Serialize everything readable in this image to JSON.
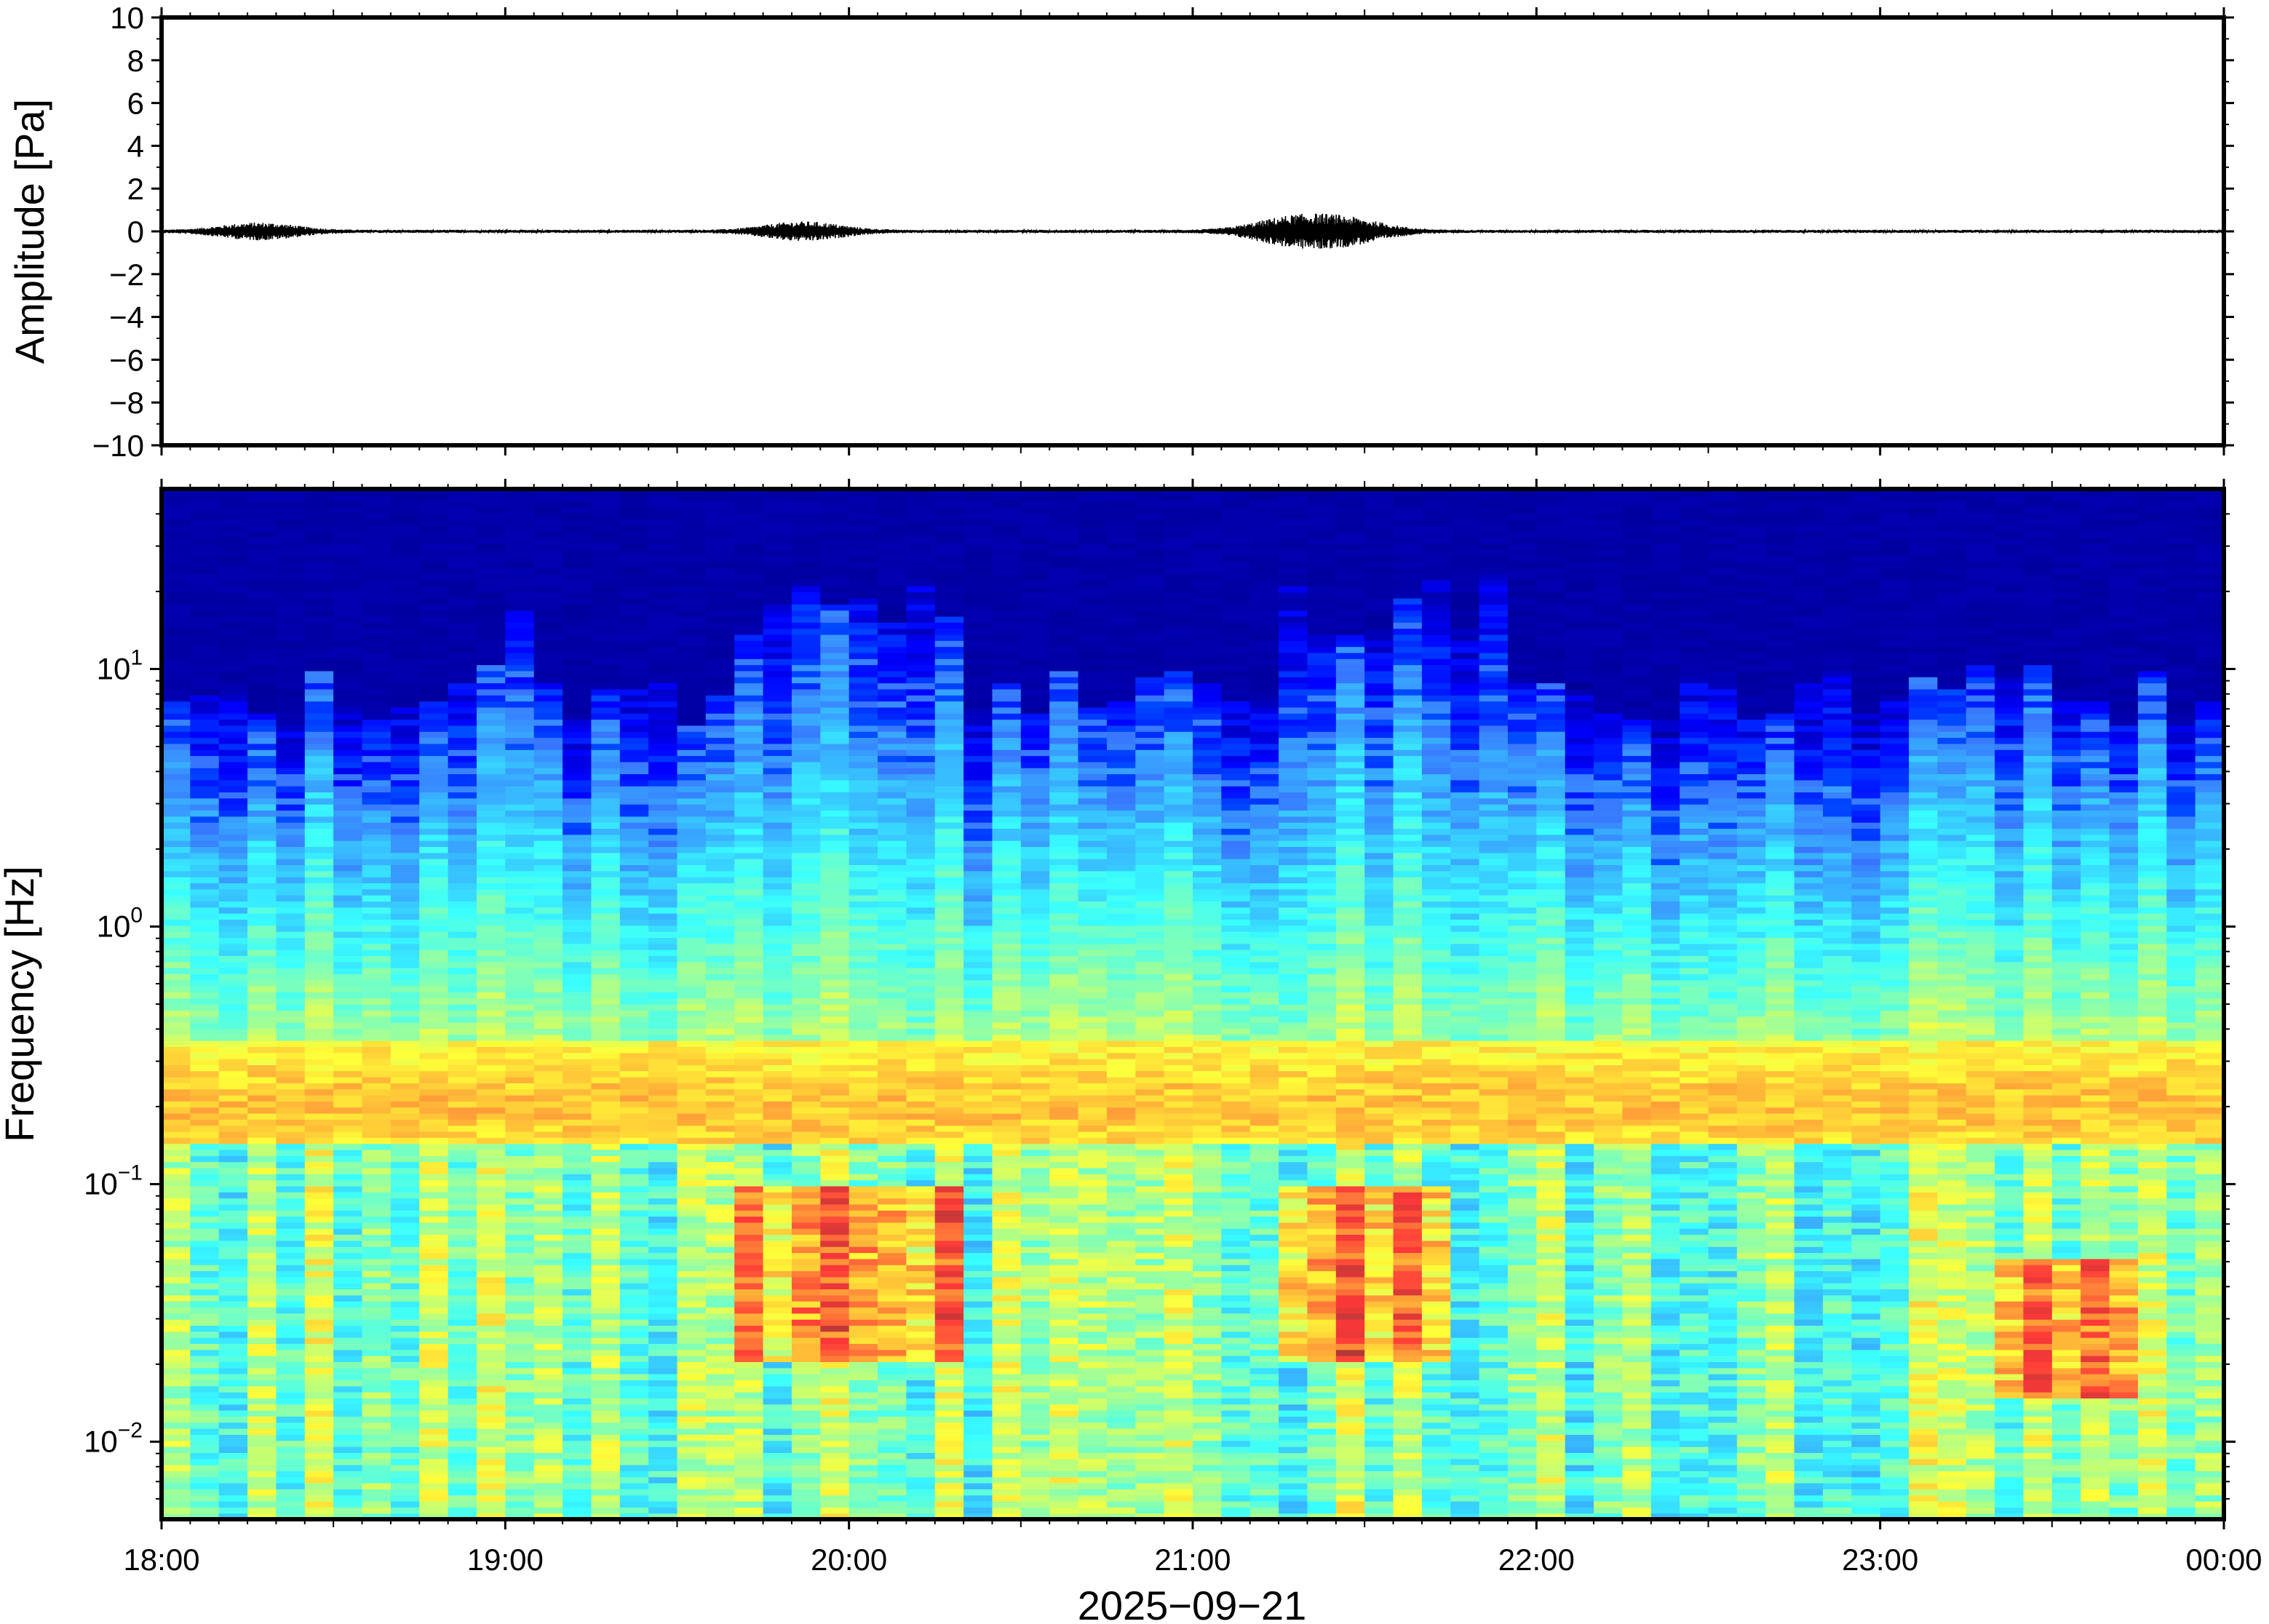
{
  "chart_data": [
    {
      "type": "line",
      "panel": "waveform",
      "ylabel": "Amplitude [Pa]",
      "xlabel": "",
      "ylim": [
        -10,
        10
      ],
      "yticks": [
        10,
        8,
        6,
        4,
        2,
        0,
        -2,
        -4,
        -6,
        -8,
        -10
      ],
      "ytick_labels": [
        "10",
        "8",
        "6",
        "4",
        "2",
        "0",
        "−2",
        "−4",
        "−6",
        "−8",
        "−10"
      ],
      "xlim": [
        "18:00",
        "00:00"
      ],
      "line_color": "#000000",
      "baseline": 0,
      "bursts": [
        {
          "time": "18:17",
          "amplitude": 0.35
        },
        {
          "time": "19:52",
          "amplitude": 0.4
        },
        {
          "time": "21:17",
          "amplitude": 0.55
        },
        {
          "time": "21:27",
          "amplitude": 0.5
        }
      ]
    },
    {
      "type": "heatmap",
      "panel": "spectrogram",
      "ylabel": "Frequency [Hz]",
      "xlabel": "2025−09−21",
      "y_scale": "log",
      "ylim": [
        0.005,
        50
      ],
      "yticks": [
        10,
        1,
        0.1,
        0.01
      ],
      "ytick_labels": [
        {
          "base": "10",
          "exp": "1"
        },
        {
          "base": "10",
          "exp": "0"
        },
        {
          "base": "10",
          "exp": "−1"
        },
        {
          "base": "10",
          "exp": "−2"
        }
      ],
      "xticks": [
        "18:00",
        "19:00",
        "20:00",
        "21:00",
        "22:00",
        "23:00",
        "00:00"
      ],
      "colormap": "jet",
      "grid": false,
      "columns_per_hour": 12,
      "activity_column_indices": [
        12,
        20,
        21,
        22,
        23,
        24,
        25,
        26,
        27,
        39,
        40,
        41,
        42,
        43,
        44,
        45,
        46
      ],
      "high_power_regions": [
        {
          "time_start": "19:38",
          "time_end": "20:20",
          "freq_low": 0.02,
          "freq_high": 0.1
        },
        {
          "time_start": "21:13",
          "time_end": "21:43",
          "freq_low": 0.02,
          "freq_high": 0.1
        },
        {
          "time_start": "23:20",
          "time_end": "23:45",
          "freq_low": 0.015,
          "freq_high": 0.05
        }
      ],
      "low_power_band_above_hz": 8
    }
  ]
}
